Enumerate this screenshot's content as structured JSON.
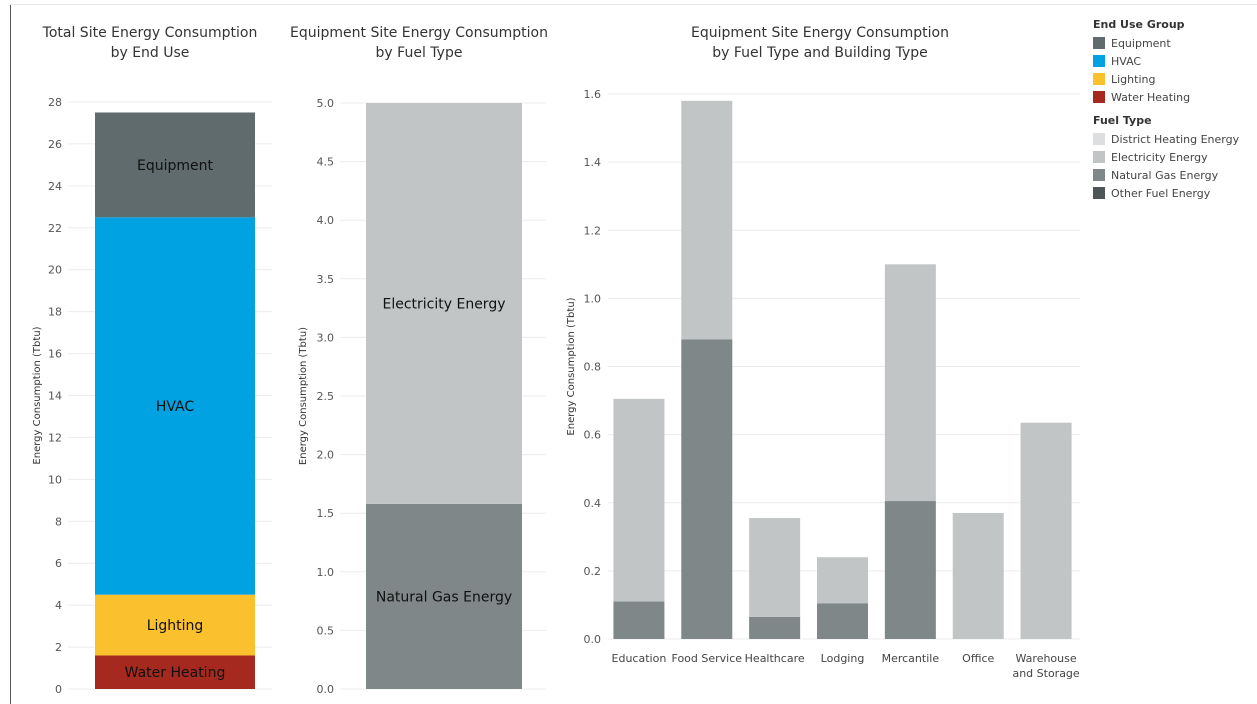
{
  "chart_data": [
    {
      "type": "bar",
      "stacked": true,
      "title": "Total Site Energy Consumption\nby End Use",
      "ylabel": "Energy Consumption (Tbtu)",
      "ylim": [
        0,
        28
      ],
      "yticks": [
        0,
        2,
        4,
        6,
        8,
        10,
        12,
        14,
        16,
        18,
        20,
        22,
        24,
        26,
        28
      ],
      "grid": true,
      "segments": [
        {
          "label": "Water Heating",
          "value": 1.6,
          "color": "#a5291e"
        },
        {
          "label": "Lighting",
          "value": 2.9,
          "color": "#fbc02d"
        },
        {
          "label": "HVAC",
          "value": 18.0,
          "color": "#00a2e2"
        },
        {
          "label": "Equipment",
          "value": 5.0,
          "color": "#5f6b6d"
        }
      ]
    },
    {
      "type": "bar",
      "stacked": true,
      "title": "Equipment Site Energy Consumption\nby Fuel Type",
      "ylabel": "Energy Consumption (Tbtu)",
      "ylim": [
        0,
        5.0
      ],
      "yticks": [
        "0.0",
        "0.5",
        "1.0",
        "1.5",
        "2.0",
        "2.5",
        "3.0",
        "3.5",
        "4.0",
        "4.5",
        "5.0"
      ],
      "grid": true,
      "segments": [
        {
          "label": "Natural Gas Energy",
          "value": 1.58,
          "color": "#7f8789"
        },
        {
          "label": "Electricity Energy",
          "value": 3.42,
          "color": "#c1c5c6"
        }
      ]
    },
    {
      "type": "bar",
      "stacked": true,
      "title": "Equipment Site Energy Consumption\nby Fuel Type and Building Type",
      "ylabel": "Energy Consumption (Tbtu)",
      "ylim": [
        0,
        1.6
      ],
      "yticks": [
        "0.0",
        "0.2",
        "0.4",
        "0.6",
        "0.8",
        "1.0",
        "1.2",
        "1.4",
        "1.6"
      ],
      "grid": true,
      "categories": [
        [
          "Education"
        ],
        [
          "Food Service"
        ],
        [
          "Healthcare"
        ],
        [
          "Lodging"
        ],
        [
          "Mercantile"
        ],
        [
          "Office"
        ],
        [
          "Warehouse",
          "and Storage"
        ]
      ],
      "series": [
        {
          "name": "Natural Gas Energy",
          "color": "#7f8789",
          "values": [
            0.11,
            0.88,
            0.065,
            0.105,
            0.405,
            0.0,
            0.0
          ]
        },
        {
          "name": "Electricity Energy",
          "color": "#c1c5c6",
          "values": [
            0.595,
            0.7,
            0.29,
            0.135,
            0.695,
            0.37,
            0.635
          ]
        }
      ]
    }
  ],
  "legend": {
    "groups": [
      {
        "title": "End Use Group",
        "items": [
          {
            "label": "Equipment",
            "color": "#5f6b6d"
          },
          {
            "label": "HVAC",
            "color": "#00a2e2"
          },
          {
            "label": "Lighting",
            "color": "#fbc02d"
          },
          {
            "label": "Water Heating",
            "color": "#a5291e"
          }
        ]
      },
      {
        "title": "Fuel Type",
        "items": [
          {
            "label": "District Heating Energy",
            "color": "#dcdedf"
          },
          {
            "label": "Electricity Energy",
            "color": "#c1c5c6"
          },
          {
            "label": "Natural Gas Energy",
            "color": "#7f8789"
          },
          {
            "label": "Other Fuel Energy",
            "color": "#4e5556"
          }
        ]
      }
    ]
  }
}
